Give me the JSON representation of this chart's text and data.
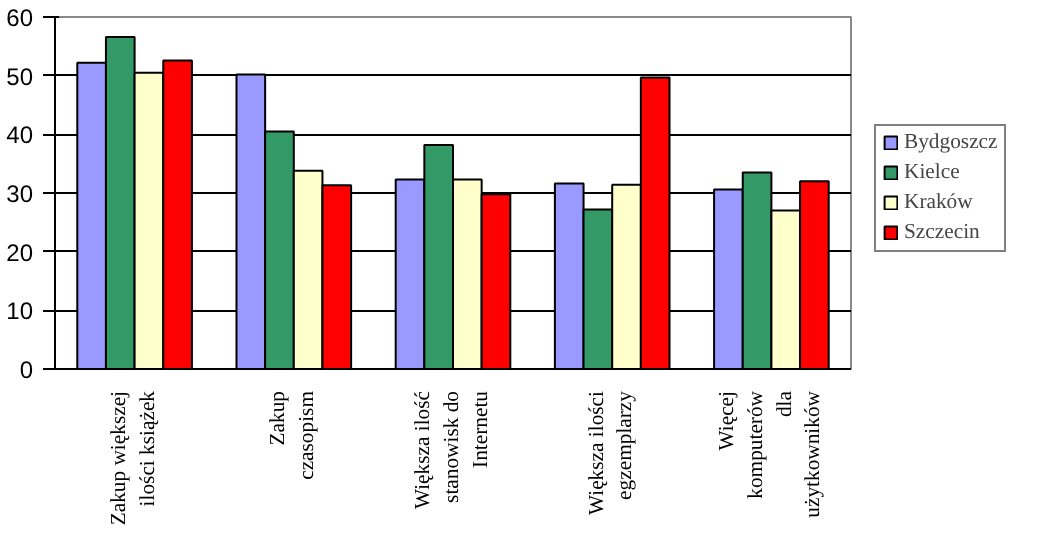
{
  "chart_data": {
    "type": "bar",
    "categories": [
      "Zakup większej\nilości książek",
      "Zakup\nczasopism",
      "Większa ilość\nstanowisk do\nInternetu",
      "Większa ilości\negzemplarzy",
      "Więcej\nkomputerów\ndla\nużytkowników"
    ],
    "series": [
      {
        "name": "Bydgoszcz",
        "color": "#9999ff",
        "values": [
          52.2,
          50.2,
          32.3,
          31.6,
          30.6
        ]
      },
      {
        "name": "Kielce",
        "color": "#339966",
        "values": [
          56.6,
          40.5,
          38.2,
          27.2,
          33.5
        ]
      },
      {
        "name": "Kraków",
        "color": "#ffffcc",
        "values": [
          50.5,
          33.8,
          32.3,
          31.4,
          27.0
        ]
      },
      {
        "name": "Szczecin",
        "color": "#ff0000",
        "values": [
          52.6,
          31.3,
          29.8,
          49.7,
          32.0
        ]
      }
    ],
    "ylim": [
      0,
      60
    ],
    "yticks": [
      0,
      10,
      20,
      30,
      40,
      50,
      60
    ],
    "grid": "y",
    "legend": "right"
  }
}
